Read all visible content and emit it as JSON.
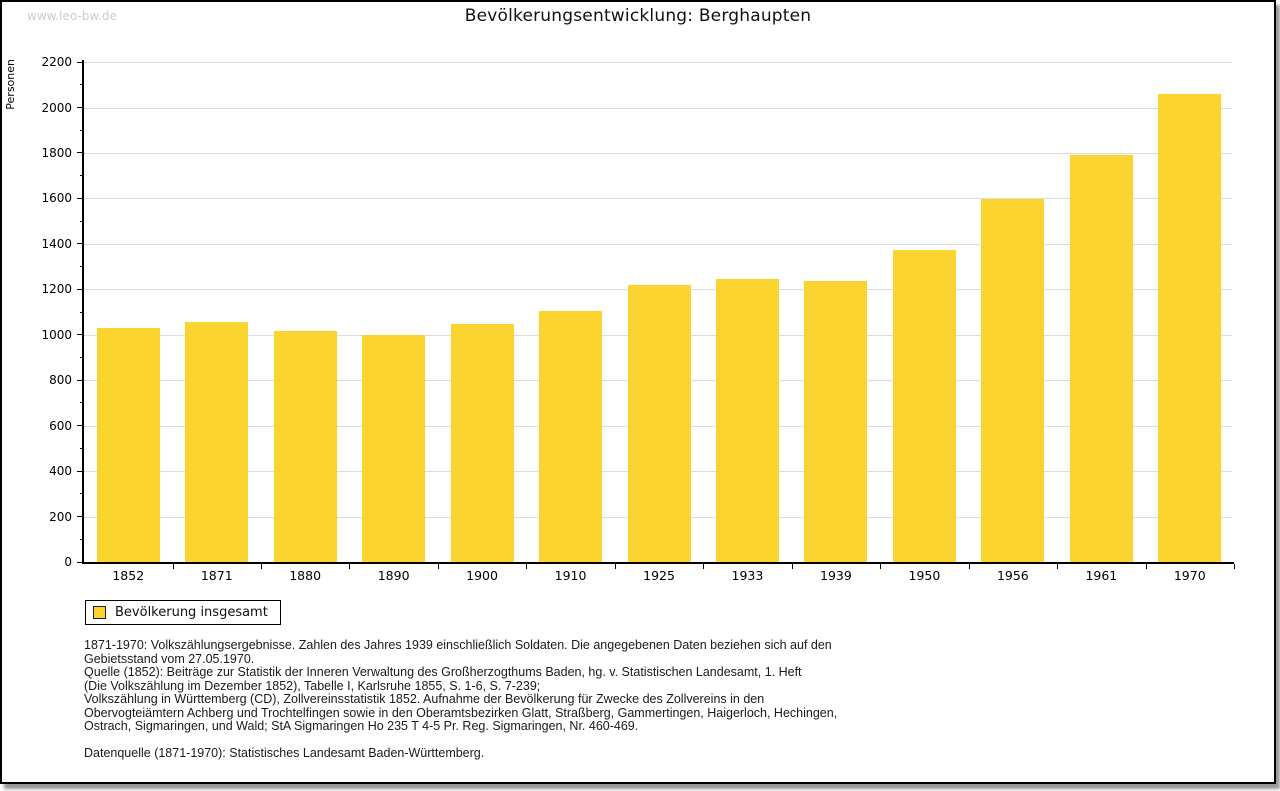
{
  "watermark": "www.leo-bw.de",
  "title": "Bevölkerungsentwicklung: Berghaupten",
  "legend": {
    "label": "Bevölkerung insgesamt",
    "swatch_color": "#FCD42F",
    "swatch_border": "#222222"
  },
  "chart_data": {
    "type": "bar",
    "title": "Bevölkerungsentwicklung: Berghaupten",
    "ylabel": "Personen",
    "xlabel": "",
    "categories": [
      "1852",
      "1871",
      "1880",
      "1890",
      "1900",
      "1910",
      "1925",
      "1933",
      "1939",
      "1950",
      "1956",
      "1961",
      "1970"
    ],
    "series": [
      {
        "name": "Bevölkerung insgesamt",
        "values": [
          1029,
          1055,
          1016,
          998,
          1048,
          1106,
          1218,
          1246,
          1235,
          1374,
          1598,
          1790,
          2060
        ]
      }
    ],
    "ylim": [
      0,
      2200
    ],
    "ytick_step": 200,
    "minor_tick_step": 100,
    "grid": true,
    "gridline_color": "#dddddd",
    "bar_color": "#FCD42F",
    "axis_color": "#000000",
    "legend_position": "bottom-left"
  },
  "footnotes": {
    "lines": [
      "1871-1970: Volkszählungsergebnisse. Zahlen des Jahres 1939 einschließlich Soldaten. Die angegebenen Daten beziehen sich auf den",
      "Gebietsstand vom 27.05.1970.",
      "Quelle (1852): Beiträge zur Statistik der Inneren Verwaltung des Großherzogthums Baden, hg. v. Statistischen Landesamt, 1. Heft",
      "(Die Volkszählung im Dezember 1852), Tabelle I, Karlsruhe 1855, S. 1-6, S. 7-239;",
      "Volkszählung in Württemberg (CD), Zollvereinsstatistik 1852. Aufnahme der Bevölkerung für Zwecke des Zollvereins in den",
      "Obervogteiämtern Achberg und Trochtelfingen sowie in den Oberamtsbezirken Glatt, Straßberg, Gammertingen, Haigerloch, Hechingen,",
      "Ostrach, Sigmaringen, und Wald; StA Sigmaringen Ho 235 T 4-5 Pr. Reg. Sigmaringen, Nr. 460-469."
    ],
    "datasource": "Datenquelle (1871-1970): Statistisches Landesamt Baden-Württemberg."
  }
}
